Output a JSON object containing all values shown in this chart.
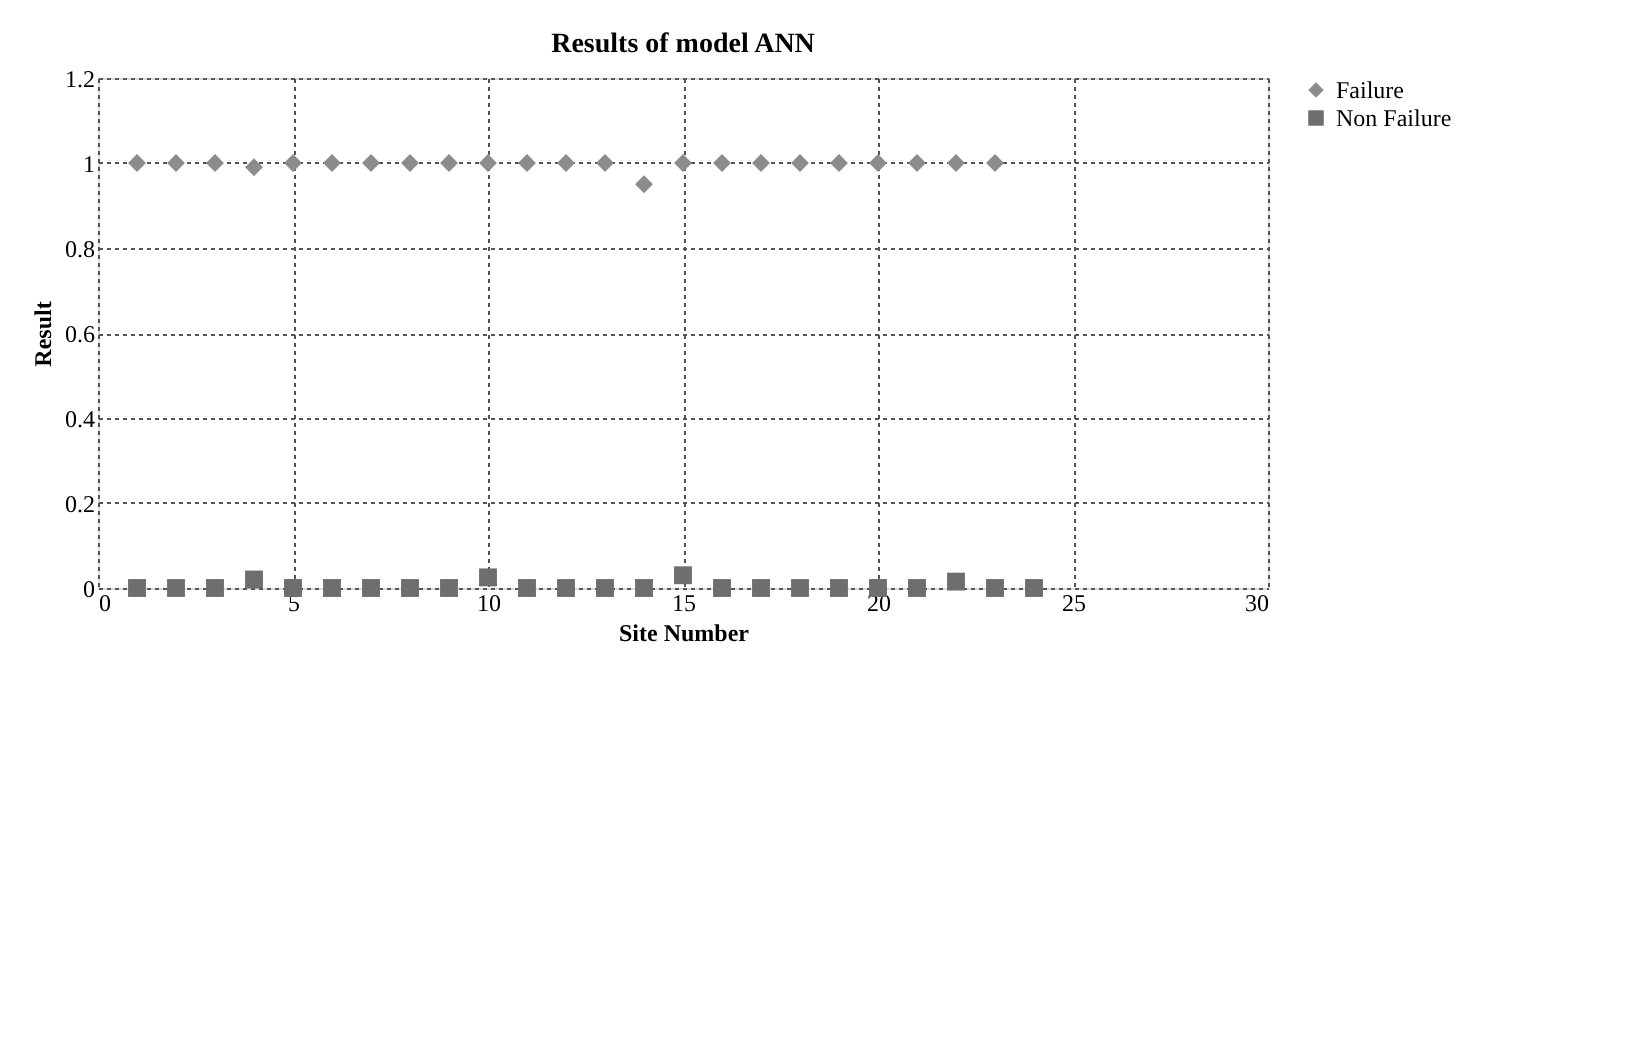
{
  "chart_data": {
    "type": "scatter",
    "title": "Results of model ANN",
    "xlabel": "Site Number",
    "ylabel": "Result",
    "xlim": [
      0,
      30
    ],
    "xticks": [
      0,
      5,
      10,
      15,
      20,
      25,
      30
    ],
    "ylim": [
      0,
      1.2
    ],
    "yticks": [
      0,
      0.2,
      0.4,
      0.6,
      0.8,
      1,
      1.2
    ],
    "grid": true,
    "legend": "right",
    "series": [
      {
        "name": "Failure",
        "color": "#8c8c8c",
        "marker": "diamond",
        "x": [
          1,
          2,
          3,
          4,
          5,
          6,
          7,
          8,
          9,
          10,
          11,
          12,
          13,
          14,
          15,
          16,
          17,
          18,
          19,
          20,
          21,
          22,
          23
        ],
        "values": [
          1,
          1,
          1,
          0.99,
          1,
          1,
          1,
          1,
          1,
          1,
          1,
          1,
          1,
          0.95,
          1,
          1,
          1,
          1,
          1,
          1,
          1,
          1,
          1
        ]
      },
      {
        "name": "Non Failure",
        "color": "#6e6e6e",
        "marker": "square",
        "x": [
          1,
          2,
          3,
          4,
          5,
          6,
          7,
          8,
          9,
          10,
          11,
          12,
          13,
          14,
          15,
          16,
          17,
          18,
          19,
          20,
          21,
          22,
          23,
          24
        ],
        "values": [
          0,
          0,
          0,
          0.02,
          0,
          0,
          0,
          0,
          0,
          0.025,
          0,
          0,
          0,
          0,
          0.03,
          0,
          0,
          0,
          0,
          0,
          0,
          0.015,
          0,
          0
        ]
      }
    ]
  }
}
